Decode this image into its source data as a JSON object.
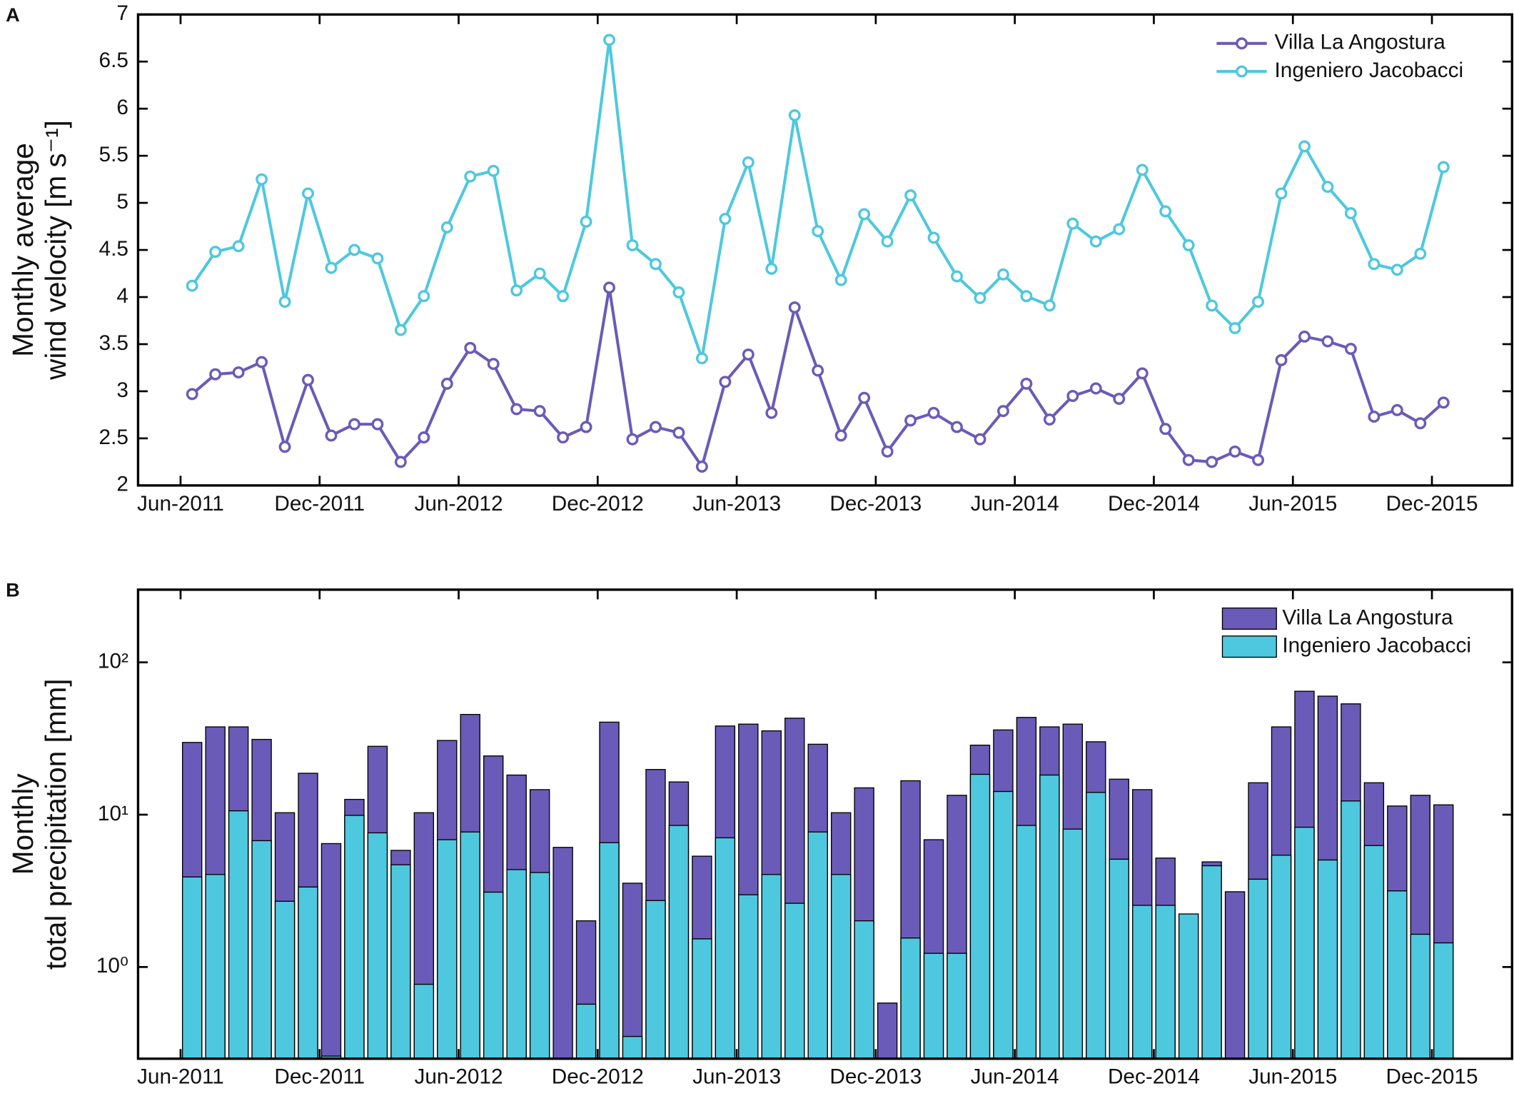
{
  "chart_data": [
    {
      "type": "line",
      "panel_label": "A",
      "ylabel": [
        "Monthly average",
        "wind velocity [m s⁻¹]"
      ],
      "categories": [
        "Jun-2011",
        null,
        null,
        null,
        null,
        null,
        "Dec-2011",
        null,
        null,
        null,
        null,
        null,
        "Jun-2012",
        null,
        null,
        null,
        null,
        null,
        "Dec-2012",
        null,
        null,
        null,
        null,
        null,
        "Jun-2013",
        null,
        null,
        null,
        null,
        null,
        "Dec-2013",
        null,
        null,
        null,
        null,
        null,
        "Jun-2014",
        null,
        null,
        null,
        null,
        null,
        "Dec-2014",
        null,
        null,
        null,
        null,
        null,
        "Jun-2015",
        null,
        null,
        null,
        null,
        null,
        "Dec-2015"
      ],
      "series": [
        {
          "name": "Villa La Angostura",
          "color": "#6a5bb8",
          "values": [
            2.97,
            3.18,
            3.2,
            3.31,
            2.41,
            3.12,
            2.53,
            2.65,
            2.65,
            2.25,
            2.51,
            3.08,
            3.46,
            3.29,
            2.81,
            2.79,
            2.51,
            2.62,
            4.1,
            2.49,
            2.62,
            2.56,
            2.2,
            3.1,
            3.39,
            2.77,
            3.89,
            3.22,
            2.53,
            2.93,
            2.36,
            2.69,
            2.77,
            2.62,
            2.49,
            2.79,
            3.08,
            2.7,
            2.95,
            3.03,
            2.92,
            3.19,
            2.6,
            2.27,
            2.25,
            2.36,
            2.27,
            3.33,
            3.58,
            3.53,
            3.45,
            2.73,
            2.8,
            2.66,
            2.88
          ]
        },
        {
          "name": "Ingeniero Jacobacci",
          "color": "#4ec8de",
          "values": [
            4.12,
            4.48,
            4.54,
            5.25,
            3.95,
            5.1,
            4.31,
            4.5,
            4.41,
            3.65,
            4.01,
            4.74,
            5.28,
            5.34,
            4.07,
            4.25,
            4.01,
            4.8,
            6.73,
            4.55,
            4.35,
            4.05,
            3.35,
            4.83,
            5.43,
            4.3,
            5.93,
            4.7,
            4.18,
            4.88,
            4.59,
            5.08,
            4.63,
            4.22,
            3.99,
            4.24,
            4.01,
            3.91,
            4.78,
            4.59,
            4.72,
            5.35,
            4.91,
            4.55,
            3.91,
            3.67,
            3.95,
            5.1,
            5.6,
            5.17,
            4.89,
            4.35,
            4.29,
            4.46,
            5.38
          ]
        }
      ],
      "ylim": [
        2,
        7
      ],
      "yticks": [
        2,
        2.5,
        3,
        3.5,
        4,
        4.5,
        5,
        5.5,
        6,
        6.5,
        7
      ],
      "legend": "upper right"
    },
    {
      "type": "bar",
      "panel_label": "B",
      "ylabel": [
        "Monthly",
        "total precipitation [mm]"
      ],
      "categories": [
        "Jun-2011",
        null,
        null,
        null,
        null,
        null,
        "Dec-2011",
        null,
        null,
        null,
        null,
        null,
        "Jun-2012",
        null,
        null,
        null,
        null,
        null,
        "Dec-2012",
        null,
        null,
        null,
        null,
        null,
        "Jun-2013",
        null,
        null,
        null,
        null,
        null,
        "Dec-2013",
        null,
        null,
        null,
        null,
        null,
        "Jun-2014",
        null,
        null,
        null,
        null,
        null,
        "Dec-2014",
        null,
        null,
        null,
        null,
        null,
        "Jun-2015",
        null,
        null,
        null,
        null,
        null,
        "Dec-2015"
      ],
      "series": [
        {
          "name": "Villa La Angostura",
          "color": "#6a5bb8",
          "values": [
            29.8,
            37.7,
            37.7,
            31.2,
            10.3,
            18.7,
            6.46,
            12.6,
            28.1,
            5.83,
            10.3,
            30.7,
            45.5,
            24.3,
            18.2,
            14.6,
            6.1,
            2.01,
            40.5,
            3.55,
            19.8,
            16.4,
            5.34,
            38.2,
            39.3,
            35.5,
            43,
            29,
            10.3,
            15,
            0.58,
            16.7,
            6.85,
            13.4,
            28.6,
            36,
            43.5,
            37.7,
            39.3,
            30.1,
            17.1,
            14.6,
            5.19,
            null,
            4.9,
            3.12,
            16.2,
            37.7,
            64.6,
            60,
            53.4,
            16.2,
            11.4,
            13.4,
            11.6
          ]
        },
        {
          "name": "Ingeniero Jacobacci",
          "color": "#4ec8de",
          "values": [
            3.9,
            4.05,
            10.6,
            6.75,
            2.7,
            3.35,
            0.26,
            9.9,
            7.6,
            4.69,
            0.77,
            6.85,
            7.7,
            3.1,
            4.36,
            4.17,
            null,
            0.57,
            6.55,
            0.35,
            2.73,
            8.5,
            1.53,
            7.05,
            2.98,
            4.05,
            2.62,
            7.7,
            4.05,
            2.01,
            null,
            1.55,
            1.23,
            1.23,
            18.4,
            14.2,
            8.5,
            18.2,
            8.04,
            14,
            5.1,
            2.54,
            2.54,
            2.23,
            4.62,
            null,
            3.77,
            5.42,
            8.27,
            5.04,
            12.3,
            6.27,
            3.16,
            1.64,
            1.44
          ]
        }
      ],
      "ylim": [
        0.25,
        300
      ],
      "log_y": true,
      "yticks": [
        {
          "value": 1,
          "label": "10⁰"
        },
        {
          "value": 10,
          "label": "10¹"
        },
        {
          "value": 100,
          "label": "10²"
        }
      ],
      "legend": "upper right"
    }
  ]
}
